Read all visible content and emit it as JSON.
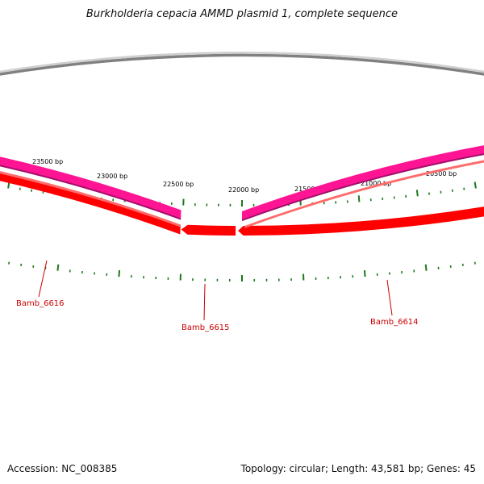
{
  "title": "Burkholderia cepacia AMMD plasmid 1, complete sequence",
  "accession": "Accession: NC_008385",
  "summary": "Topology: circular; Length: 43,581 bp; Genes: 45",
  "ticks": [
    {
      "bp": 23500,
      "label": "23500 bp"
    },
    {
      "bp": 23000,
      "label": "23000 bp"
    },
    {
      "bp": 22500,
      "label": "22500 bp"
    },
    {
      "bp": 22000,
      "label": "22000 bp"
    },
    {
      "bp": 21500,
      "label": "21500 bp"
    },
    {
      "bp": 21000,
      "label": "21000 bp"
    },
    {
      "bp": 20500,
      "label": "20500 bp"
    }
  ],
  "genes": [
    {
      "name": "Bamb_6616"
    },
    {
      "name": "Bamb_6615"
    },
    {
      "name": "Bamb_6614"
    }
  ],
  "colors": {
    "backbone": "#808080",
    "cds_forward": "#ff0000",
    "cds_forward_dark": "#b80000",
    "gene_track": "#ff1493",
    "gene_track_dark": "#a0106a",
    "tick": "#1a7a1a",
    "label": "#cc0000"
  }
}
